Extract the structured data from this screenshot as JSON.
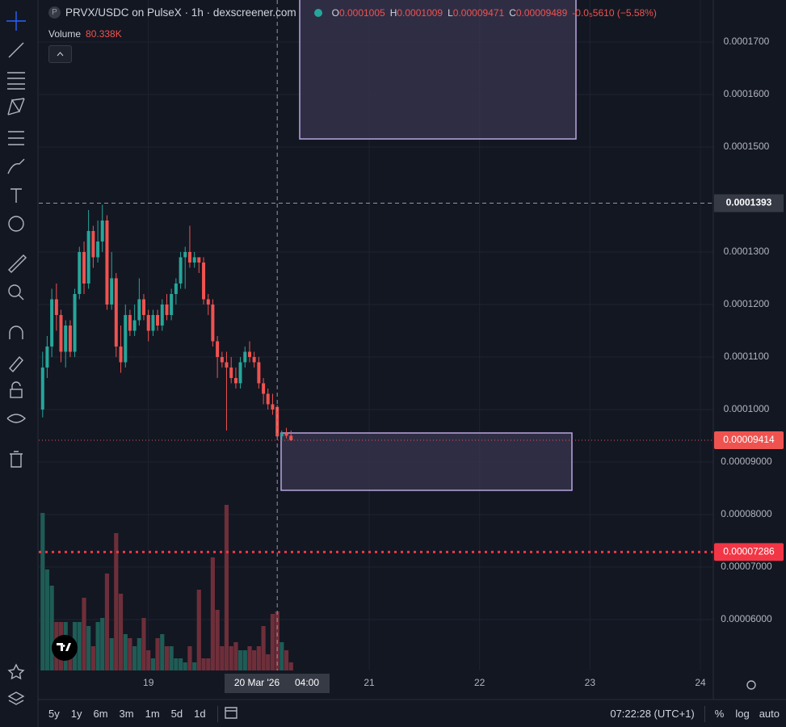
{
  "chart_data": {
    "type": "candlestick",
    "title": "PRVX/USDC on PulseX · 1h · dexscreener.com",
    "symbol_icon": "P",
    "ohlc_keys": [
      "O",
      "H",
      "L",
      "C"
    ],
    "change": "-0.0₅5610 (−5.58%)",
    "volume_legend": {
      "name": "Volume",
      "label": "80.338K"
    },
    "x": [
      18.042,
      18.083,
      18.125,
      18.167,
      18.208,
      18.25,
      18.292,
      18.333,
      18.375,
      18.417,
      18.458,
      18.5,
      18.542,
      18.583,
      18.625,
      18.667,
      18.708,
      18.75,
      18.792,
      18.833,
      18.875,
      18.917,
      18.958,
      19,
      19.042,
      19.083,
      19.125,
      19.167,
      19.208,
      19.25,
      19.292,
      19.333,
      19.375,
      19.417,
      19.458,
      19.5,
      19.542,
      19.583,
      19.625,
      19.667,
      19.708,
      19.75,
      19.792,
      19.833,
      19.875,
      19.917,
      19.958,
      20,
      20.042,
      20.083,
      20.125,
      20.167,
      20.208,
      20.25,
      20.292
    ],
    "open": [
      0.0001,
      0.000108,
      0.000112,
      0.000121,
      0.000118,
      0.000111,
      0.000116,
      0.000111,
      0.000122,
      0.00013,
      0.000124,
      0.000134,
      0.000129,
      0.000132,
      0.000136,
      0.00012,
      0.000125,
      0.000112,
      0.000109,
      0.000118,
      0.000115,
      0.000117,
      0.000121,
      0.000118,
      0.000115,
      0.000118,
      0.000116,
      0.00012,
      0.000118,
      0.000122,
      0.000124,
      0.000129,
      0.00013,
      0.000128,
      0.000129,
      0.000128,
      0.000121,
      0.00012,
      0.000113,
      0.00011,
      0.000109,
      0.000108,
      0.000106,
      0.000105,
      0.000109,
      0.000111,
      0.00011,
      0.000109,
      0.000105,
      0.000103,
      0.000101,
      0.0001005,
      9.489e-05,
      9.55e-05,
      9.5e-05
    ],
    "high": [
      0.000111,
      0.000114,
      0.000123,
      0.000124,
      0.000119,
      0.000117,
      0.000117,
      0.000123,
      0.000131,
      0.000132,
      0.000138,
      0.000135,
      0.000136,
      0.000139,
      0.000137,
      0.00013,
      0.000126,
      0.000116,
      0.00012,
      0.000119,
      0.00012,
      0.000125,
      0.000122,
      0.000119,
      0.000119,
      0.000119,
      0.000121,
      0.000122,
      0.000123,
      0.000125,
      0.00013,
      0.000131,
      0.000135,
      0.00013,
      0.000129,
      0.000129,
      0.000122,
      0.000121,
      0.000114,
      0.000111,
      0.000111,
      0.00011,
      0.000108,
      0.00011,
      0.000112,
      0.000113,
      0.000111,
      0.00011,
      0.000106,
      0.000104,
      0.000103,
      0.0001009,
      9.6e-05,
      9.65e-05,
      9.6e-05
    ],
    "low": [
      9.85e-05,
      0.000106,
      0.00011,
      0.000115,
      0.000109,
      0.000108,
      0.00011,
      0.00011,
      0.000121,
      0.000122,
      0.000123,
      0.000127,
      0.000128,
      0.00013,
      0.000119,
      0.000119,
      0.00011,
      0.000107,
      0.000108,
      0.000114,
      0.000114,
      0.000116,
      0.000117,
      0.000113,
      0.000114,
      0.000115,
      0.000115,
      0.000117,
      0.000117,
      0.00012,
      0.000123,
      0.000123,
      0.000127,
      0.000127,
      0.000126,
      0.00012,
      0.000118,
      0.000112,
      0.000106,
      0.000108,
      9.6e-05,
      0.000105,
      0.000104,
      0.000104,
      0.000108,
      0.000109,
      0.000108,
      0.000104,
      0.000101,
      0.0001,
      9.9e-05,
      9.471e-05,
      9.4e-05,
      9.45e-05,
      9.4e-05
    ],
    "close": [
      0.000108,
      0.000112,
      0.000121,
      0.000118,
      0.000111,
      0.000116,
      0.000111,
      0.000122,
      0.00013,
      0.000124,
      0.000134,
      0.000129,
      0.000132,
      0.000136,
      0.00012,
      0.000125,
      0.000112,
      0.000109,
      0.000118,
      0.000115,
      0.000117,
      0.000121,
      0.000118,
      0.000115,
      0.000118,
      0.000116,
      0.00012,
      0.000118,
      0.000122,
      0.000124,
      0.000129,
      0.00013,
      0.000128,
      0.000129,
      0.000128,
      0.000121,
      0.00012,
      0.000113,
      0.00011,
      0.000109,
      0.000108,
      0.000106,
      0.000105,
      0.000109,
      0.000111,
      0.00011,
      0.000109,
      0.000105,
      0.000103,
      0.000101,
      0.0001,
      9.489e-05,
      9.55e-05,
      9.5e-05,
      9.414e-05
    ],
    "volume": [
      214500,
      137500,
      115500,
      66000,
      66000,
      66000,
      44000,
      66000,
      66000,
      99000,
      60500,
      33000,
      66000,
      71500,
      132000,
      44000,
      187000,
      104500,
      49500,
      44000,
      33000,
      44000,
      71500,
      27500,
      16500,
      44000,
      49500,
      33000,
      33000,
      16500,
      16500,
      11000,
      33000,
      11000,
      110000,
      16500,
      16500,
      154000,
      82500,
      33000,
      225500,
      33000,
      38500,
      27500,
      27500,
      33000,
      27500,
      33000,
      60500,
      22000,
      77000,
      80338,
      38500,
      27500,
      11000
    ],
    "up_color": "#26a69a",
    "down_color": "#ef5350",
    "volume_up_color": "#1f5c56",
    "volume_down_color": "#6e2f3a",
    "xlim": [
      18.007,
      24.117
    ],
    "xticks": [
      19,
      21,
      22,
      23,
      24
    ],
    "ylim": [
      5.03e-05,
      0.000178
    ],
    "yticks": [
      {
        "value": 0.00017,
        "label": "0.0001700"
      },
      {
        "value": 0.00016,
        "label": "0.0001600"
      },
      {
        "value": 0.00015,
        "label": "0.0001500"
      },
      {
        "value": 0.00013,
        "label": "0.0001300"
      },
      {
        "value": 0.00012,
        "label": "0.0001200"
      },
      {
        "value": 0.00011,
        "label": "0.0001100"
      },
      {
        "value": 0.0001,
        "label": "0.0001000"
      },
      {
        "value": 9e-05,
        "label": "0.00009000"
      },
      {
        "value": 8e-05,
        "label": "0.00008000"
      },
      {
        "value": 7e-05,
        "label": "0.00007000"
      },
      {
        "value": 6e-05,
        "label": "0.00006000"
      }
    ],
    "grid": true,
    "crosshair": {
      "price": 0.0001393,
      "date_label": "20 Mar '26",
      "time_label": "04:00"
    },
    "alert_line": {
      "price": 7.286e-05,
      "color": "#f23645"
    }
  },
  "toolbar": {
    "timeframes": [
      "5y",
      "1y",
      "6m",
      "3m",
      "1m",
      "5d",
      "1d"
    ],
    "clock": "07:22:28 (UTC+1)",
    "scale_modes": [
      "%",
      "log",
      "auto"
    ]
  }
}
